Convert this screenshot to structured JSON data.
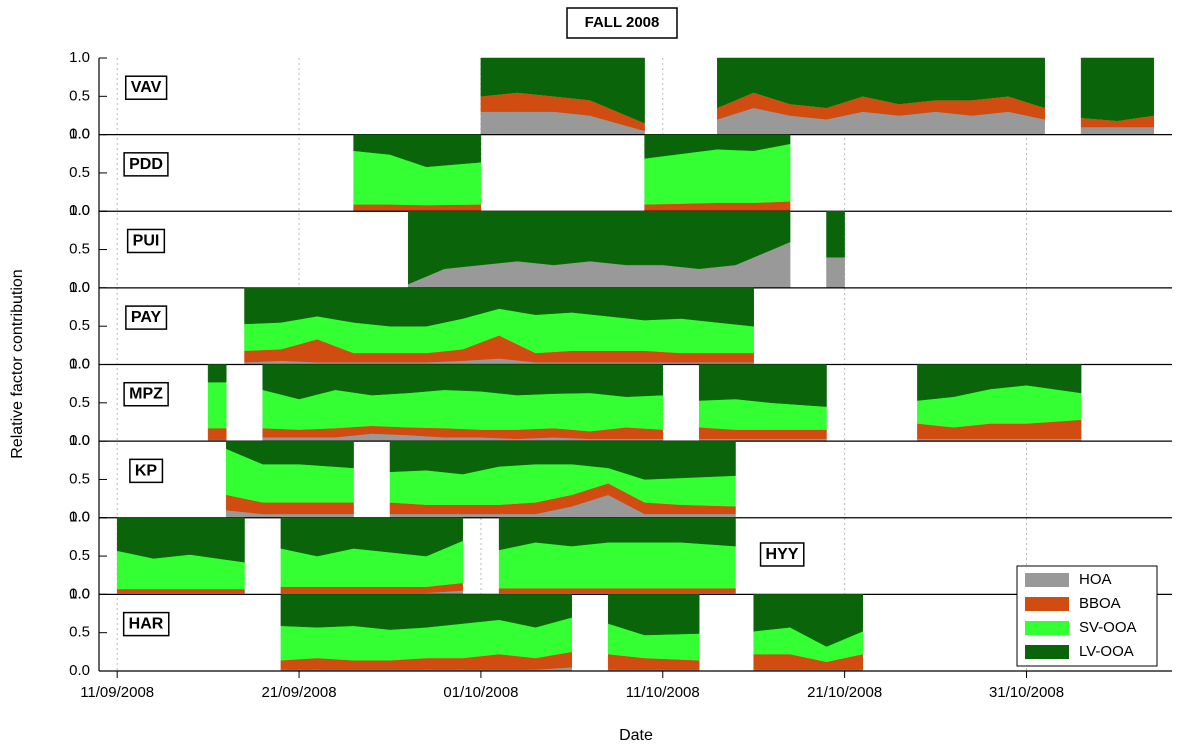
{
  "chart_data": {
    "type": "stacked_area",
    "title": "FALL 2008",
    "x_label": "Date",
    "y_label": "Relative factor contribution",
    "legend_position": "lower right",
    "grid": true,
    "xlim": [
      "2008-09-10",
      "2008-11-08"
    ],
    "xticks": [
      {
        "value": "2008-09-11",
        "label": "11/09/2008"
      },
      {
        "value": "2008-09-21",
        "label": "21/09/2008"
      },
      {
        "value": "2008-10-01",
        "label": "01/10/2008"
      },
      {
        "value": "2008-10-11",
        "label": "11/10/2008"
      },
      {
        "value": "2008-10-21",
        "label": "21/10/2008"
      },
      {
        "value": "2008-10-31",
        "label": "31/10/2008"
      }
    ],
    "series": [
      {
        "name": "HOA",
        "color": "#999999"
      },
      {
        "name": "BBOA",
        "color": "#d04c10"
      },
      {
        "name": "SV-OOA",
        "color": "#33ff33"
      },
      {
        "name": "LV-OOA",
        "color": "#0a650a"
      }
    ],
    "panels": [
      {
        "label": "VAV",
        "ylim": [
          0,
          1
        ],
        "yticks": [
          {
            "value": 0,
            "label": "0.0"
          },
          0.5,
          {
            "value": 1,
            "label": "1.0"
          }
        ],
        "x": [
          "2008-10-01",
          "2008-10-03",
          "2008-10-05",
          "2008-10-07",
          "2008-10-10",
          "2008-10-12",
          "2008-10-14",
          "2008-10-16",
          "2008-10-18",
          "2008-10-20",
          "2008-10-22",
          "2008-10-24",
          "2008-10-26",
          "2008-10-28",
          "2008-10-30",
          "2008-11-01",
          "2008-11-02",
          "2008-11-03",
          "2008-11-05",
          "2008-11-07"
        ],
        "series": [
          {
            "values": [
              0.3,
              0.3,
              0.3,
              0.25,
              0.05,
              null,
              0.2,
              0.35,
              0.25,
              0.2,
              0.3,
              0.25,
              0.3,
              0.25,
              0.3,
              0.2,
              null,
              0.1,
              0.1,
              0.1
            ]
          },
          {
            "values": [
              0.2,
              0.25,
              0.2,
              0.2,
              0.1,
              null,
              0.15,
              0.2,
              0.15,
              0.15,
              0.2,
              0.15,
              0.15,
              0.2,
              0.2,
              0.15,
              null,
              0.12,
              0.08,
              0.15
            ]
          },
          {
            "values": [
              0,
              0,
              0,
              0,
              0,
              null,
              0,
              0,
              0,
              0,
              0,
              0,
              0,
              0,
              0,
              0,
              null,
              0,
              0,
              0
            ]
          },
          {
            "values": [
              0.5,
              0.45,
              0.5,
              0.55,
              0.85,
              null,
              0.65,
              0.45,
              0.6,
              0.65,
              0.5,
              0.6,
              0.55,
              0.55,
              0.5,
              0.65,
              null,
              0.78,
              0.82,
              0.75
            ]
          }
        ]
      },
      {
        "label": "PDD",
        "ylim": [
          0,
          1
        ],
        "yticks": [
          {
            "value": 0,
            "label": "0.0"
          },
          0.5,
          {
            "value": 1,
            "label": "1.0"
          }
        ],
        "x": [
          "2008-09-24",
          "2008-09-26",
          "2008-09-28",
          "2008-10-01",
          "2008-10-05",
          "2008-10-10",
          "2008-10-12",
          "2008-10-14",
          "2008-10-16",
          "2008-10-18"
        ],
        "series": [
          {
            "values": [
              0.01,
              0.01,
              0.01,
              0.01,
              null,
              0.01,
              0.01,
              0.01,
              0.01,
              0.01
            ]
          },
          {
            "values": [
              0.08,
              0.08,
              0.07,
              0.08,
              null,
              0.08,
              0.09,
              0.1,
              0.1,
              0.12
            ]
          },
          {
            "values": [
              0.7,
              0.65,
              0.5,
              0.55,
              null,
              0.6,
              0.65,
              0.7,
              0.68,
              0.75
            ]
          },
          {
            "values": [
              0.21,
              0.26,
              0.42,
              0.36,
              null,
              0.31,
              0.25,
              0.19,
              0.21,
              0.12
            ]
          }
        ]
      },
      {
        "label": "PUI",
        "ylim": [
          0,
          1
        ],
        "yticks": [
          {
            "value": 0,
            "label": "0.0"
          },
          0.5,
          {
            "value": 1,
            "label": "1.0"
          }
        ],
        "x": [
          "2008-09-27",
          "2008-09-29",
          "2008-10-01",
          "2008-10-03",
          "2008-10-05",
          "2008-10-07",
          "2008-10-09",
          "2008-10-11",
          "2008-10-13",
          "2008-10-15",
          "2008-10-17",
          "2008-10-18",
          "2008-10-19",
          "2008-10-20",
          "2008-10-21"
        ],
        "series": [
          {
            "values": [
              0.05,
              0.25,
              0.3,
              0.35,
              0.3,
              0.35,
              0.3,
              0.3,
              0.25,
              0.3,
              0.5,
              0.6,
              null,
              0.4,
              0.4
            ]
          },
          {
            "values": [
              0,
              0,
              0,
              0,
              0,
              0,
              0,
              0,
              0,
              0,
              0,
              0,
              null,
              0,
              0
            ]
          },
          {
            "values": [
              0,
              0,
              0,
              0,
              0,
              0,
              0,
              0,
              0,
              0,
              0,
              0,
              null,
              0,
              0
            ]
          },
          {
            "values": [
              0.95,
              0.75,
              0.7,
              0.65,
              0.7,
              0.65,
              0.7,
              0.7,
              0.75,
              0.7,
              0.5,
              0.4,
              null,
              0.6,
              0.6
            ]
          }
        ]
      },
      {
        "label": "PAY",
        "ylim": [
          0,
          1
        ],
        "yticks": [
          {
            "value": 0,
            "label": "0.0"
          },
          0.5,
          {
            "value": 1,
            "label": "1.0"
          }
        ],
        "x": [
          "2008-09-18",
          "2008-09-20",
          "2008-09-22",
          "2008-09-24",
          "2008-09-26",
          "2008-09-28",
          "2008-09-30",
          "2008-10-02",
          "2008-10-04",
          "2008-10-06",
          "2008-10-08",
          "2008-10-10",
          "2008-10-12",
          "2008-10-14",
          "2008-10-16"
        ],
        "series": [
          {
            "values": [
              0.03,
              0.05,
              0.03,
              0.03,
              0.03,
              0.03,
              0.05,
              0.08,
              0.03,
              0.03,
              0.03,
              0.03,
              0.03,
              0.03,
              0.03
            ]
          },
          {
            "values": [
              0.15,
              0.15,
              0.3,
              0.12,
              0.12,
              0.12,
              0.15,
              0.3,
              0.12,
              0.15,
              0.15,
              0.15,
              0.12,
              0.12,
              0.12
            ]
          },
          {
            "values": [
              0.35,
              0.35,
              0.3,
              0.4,
              0.35,
              0.35,
              0.4,
              0.35,
              0.5,
              0.5,
              0.45,
              0.4,
              0.45,
              0.4,
              0.35
            ]
          },
          {
            "values": [
              0.47,
              0.45,
              0.37,
              0.45,
              0.5,
              0.5,
              0.4,
              0.27,
              0.35,
              0.32,
              0.37,
              0.42,
              0.4,
              0.45,
              0.5
            ]
          }
        ]
      },
      {
        "label": "MPZ",
        "ylim": [
          0,
          1
        ],
        "yticks": [
          {
            "value": 0,
            "label": "0.0"
          },
          0.5,
          {
            "value": 1,
            "label": "1.0"
          }
        ],
        "x": [
          "2008-09-16",
          "2008-09-17",
          "2008-09-18",
          "2008-09-19",
          "2008-09-21",
          "2008-09-23",
          "2008-09-25",
          "2008-09-27",
          "2008-09-29",
          "2008-10-01",
          "2008-10-03",
          "2008-10-05",
          "2008-10-07",
          "2008-10-09",
          "2008-10-11",
          "2008-10-12",
          "2008-10-13",
          "2008-10-15",
          "2008-10-17",
          "2008-10-20",
          "2008-10-22",
          "2008-10-25",
          "2008-10-27",
          "2008-10-29",
          "2008-10-31",
          "2008-11-03"
        ],
        "series": [
          {
            "values": [
              0.02,
              0.02,
              null,
              0.05,
              0.05,
              0.05,
              0.1,
              0.08,
              0.05,
              0.05,
              0.03,
              0.05,
              0.03,
              0.03,
              0.03,
              null,
              0.03,
              0.03,
              0.03,
              0.03,
              null,
              0.03,
              0.03,
              0.03,
              0.03,
              0.03
            ]
          },
          {
            "values": [
              0.15,
              0.15,
              null,
              0.12,
              0.1,
              0.12,
              0.1,
              0.1,
              0.12,
              0.1,
              0.12,
              0.12,
              0.1,
              0.15,
              0.12,
              null,
              0.15,
              0.12,
              0.12,
              0.12,
              null,
              0.2,
              0.15,
              0.2,
              0.2,
              0.25
            ]
          },
          {
            "values": [
              0.6,
              0.6,
              null,
              0.5,
              0.4,
              0.5,
              0.4,
              0.45,
              0.5,
              0.5,
              0.45,
              0.45,
              0.5,
              0.4,
              0.45,
              null,
              0.35,
              0.4,
              0.35,
              0.3,
              null,
              0.3,
              0.4,
              0.45,
              0.5,
              0.35
            ]
          },
          {
            "values": [
              0.23,
              0.23,
              null,
              0.33,
              0.45,
              0.33,
              0.4,
              0.37,
              0.33,
              0.35,
              0.4,
              0.38,
              0.37,
              0.42,
              0.4,
              null,
              0.47,
              0.45,
              0.5,
              0.55,
              null,
              0.47,
              0.42,
              0.32,
              0.27,
              0.37
            ]
          }
        ]
      },
      {
        "label": "KP",
        "ylim": [
          0,
          1
        ],
        "yticks": [
          {
            "value": 0,
            "label": "0.0"
          },
          0.5,
          {
            "value": 1,
            "label": "1.0"
          }
        ],
        "x": [
          "2008-09-17",
          "2008-09-19",
          "2008-09-21",
          "2008-09-24",
          "2008-09-25",
          "2008-09-26",
          "2008-09-28",
          "2008-09-30",
          "2008-10-02",
          "2008-10-04",
          "2008-10-06",
          "2008-10-08",
          "2008-10-10",
          "2008-10-12",
          "2008-10-15"
        ],
        "series": [
          {
            "values": [
              0.1,
              0.05,
              0.05,
              0.05,
              null,
              0.05,
              0.05,
              0.05,
              0.05,
              0.05,
              0.15,
              0.3,
              0.05,
              0.05,
              0.05
            ]
          },
          {
            "values": [
              0.2,
              0.15,
              0.15,
              0.15,
              null,
              0.15,
              0.12,
              0.12,
              0.12,
              0.15,
              0.15,
              0.15,
              0.15,
              0.12,
              0.1
            ]
          },
          {
            "values": [
              0.6,
              0.5,
              0.5,
              0.45,
              null,
              0.4,
              0.45,
              0.4,
              0.5,
              0.5,
              0.4,
              0.2,
              0.3,
              0.35,
              0.4
            ]
          },
          {
            "values": [
              0.1,
              0.3,
              0.3,
              0.35,
              null,
              0.4,
              0.38,
              0.43,
              0.33,
              0.3,
              0.3,
              0.35,
              0.5,
              0.48,
              0.45
            ]
          }
        ]
      },
      {
        "label": "HYY",
        "ylim": [
          0,
          1
        ],
        "yticks": [
          {
            "value": 0,
            "label": "0.0"
          },
          0.5,
          {
            "value": 1,
            "label": "1.0"
          }
        ],
        "x": [
          "2008-09-11",
          "2008-09-13",
          "2008-09-15",
          "2008-09-18",
          "2008-09-19",
          "2008-09-20",
          "2008-09-22",
          "2008-09-24",
          "2008-09-26",
          "2008-09-28",
          "2008-09-30",
          "2008-10-01",
          "2008-10-02",
          "2008-10-04",
          "2008-10-06",
          "2008-10-08",
          "2008-10-10",
          "2008-10-12",
          "2008-10-15"
        ],
        "series": [
          {
            "values": [
              0.02,
              0.02,
              0.02,
              0.02,
              null,
              0.02,
              0.02,
              0.02,
              0.02,
              0.02,
              0.05,
              null,
              0.02,
              0.02,
              0.02,
              0.02,
              0.02,
              0.02,
              0.02
            ]
          },
          {
            "values": [
              0.05,
              0.05,
              0.05,
              0.05,
              null,
              0.08,
              0.08,
              0.08,
              0.08,
              0.08,
              0.1,
              null,
              0.06,
              0.06,
              0.06,
              0.06,
              0.06,
              0.06,
              0.06
            ]
          },
          {
            "values": [
              0.5,
              0.4,
              0.45,
              0.35,
              null,
              0.5,
              0.4,
              0.5,
              0.45,
              0.4,
              0.55,
              null,
              0.5,
              0.6,
              0.55,
              0.6,
              0.6,
              0.6,
              0.55
            ]
          },
          {
            "values": [
              0.43,
              0.53,
              0.48,
              0.58,
              null,
              0.4,
              0.5,
              0.4,
              0.45,
              0.5,
              0.3,
              null,
              0.42,
              0.32,
              0.37,
              0.32,
              0.32,
              0.32,
              0.37
            ]
          }
        ]
      },
      {
        "label": "HAR",
        "ylim": [
          0,
          1
        ],
        "yticks": [
          {
            "value": 0,
            "label": "0.0"
          },
          0.5,
          {
            "value": 1,
            "label": "1.0"
          }
        ],
        "x": [
          "2008-09-20",
          "2008-09-22",
          "2008-09-24",
          "2008-09-26",
          "2008-09-28",
          "2008-09-30",
          "2008-10-02",
          "2008-10-04",
          "2008-10-06",
          "2008-10-07",
          "2008-10-08",
          "2008-10-10",
          "2008-10-13",
          "2008-10-14",
          "2008-10-16",
          "2008-10-18",
          "2008-10-20",
          "2008-10-22"
        ],
        "series": [
          {
            "values": [
              0.02,
              0.02,
              0.02,
              0.02,
              0.02,
              0.02,
              0.02,
              0.02,
              0.05,
              null,
              0.02,
              0.02,
              0.02,
              null,
              0.02,
              0.02,
              0.02,
              0.02
            ]
          },
          {
            "values": [
              0.12,
              0.15,
              0.12,
              0.12,
              0.15,
              0.15,
              0.2,
              0.15,
              0.2,
              null,
              0.2,
              0.15,
              0.12,
              null,
              0.2,
              0.2,
              0.1,
              0.2
            ]
          },
          {
            "values": [
              0.45,
              0.4,
              0.45,
              0.4,
              0.4,
              0.45,
              0.45,
              0.4,
              0.45,
              null,
              0.4,
              0.3,
              0.35,
              null,
              0.3,
              0.35,
              0.2,
              0.3
            ]
          },
          {
            "values": [
              0.41,
              0.43,
              0.41,
              0.46,
              0.43,
              0.38,
              0.33,
              0.43,
              0.3,
              null,
              0.38,
              0.53,
              0.51,
              null,
              0.48,
              0.43,
              0.68,
              0.48
            ]
          }
        ]
      }
    ]
  }
}
